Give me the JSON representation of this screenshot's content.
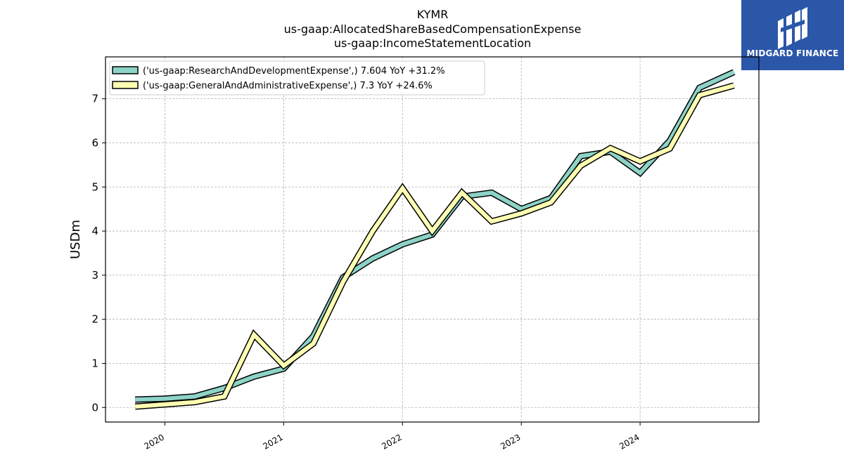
{
  "header": {
    "title_line1": "KYMR",
    "title_line2": "us-gaap:AllocatedShareBasedCompensationExpense",
    "title_line3": "us-gaap:IncomeStatementLocation"
  },
  "logo": {
    "text": "MIDGARD FINANCE",
    "color": "#2b57a8"
  },
  "chart_data": {
    "type": "line",
    "title": "KYMR\nus-gaap:AllocatedShareBasedCompensationExpense\nus-gaap:IncomeStatementLocation",
    "ylabel": "USDm",
    "xlabel": "",
    "xlim": [
      2019.5,
      2025.0
    ],
    "ylim": [
      -0.33,
      7.95
    ],
    "x_ticks": [
      {
        "value": 2020,
        "label": "2020"
      },
      {
        "value": 2021,
        "label": "2021"
      },
      {
        "value": 2022,
        "label": "2022"
      },
      {
        "value": 2023,
        "label": "2023"
      },
      {
        "value": 2024,
        "label": "2024"
      }
    ],
    "y_ticks": [
      0,
      1,
      2,
      3,
      4,
      5,
      6,
      7
    ],
    "grid": true,
    "legend_position": "top-left",
    "series": [
      {
        "name": "('us-gaap:ResearchAndDevelopmentExpense',) 7.604 YoY +31.2%",
        "color": "#8dd3c7",
        "points": [
          [
            2019.75,
            0.18
          ],
          [
            2020.0,
            0.2
          ],
          [
            2020.25,
            0.25
          ],
          [
            2020.5,
            0.44
          ],
          [
            2020.75,
            0.7
          ],
          [
            2021.0,
            0.88
          ],
          [
            2021.25,
            1.62
          ],
          [
            2021.5,
            2.95
          ],
          [
            2021.75,
            3.38
          ],
          [
            2022.0,
            3.7
          ],
          [
            2022.25,
            3.92
          ],
          [
            2022.5,
            4.78
          ],
          [
            2022.75,
            4.87
          ],
          [
            2023.0,
            4.5
          ],
          [
            2023.25,
            4.75
          ],
          [
            2023.5,
            5.7
          ],
          [
            2023.75,
            5.8
          ],
          [
            2024.0,
            5.32
          ],
          [
            2024.25,
            6.05
          ],
          [
            2024.5,
            7.25
          ],
          [
            2024.79,
            7.604
          ]
        ]
      },
      {
        "name": "('us-gaap:GeneralAndAdministrativeExpense',) 7.3 YoY +24.6%",
        "color": "#ffffb3",
        "points": [
          [
            2019.75,
            0.02
          ],
          [
            2020.0,
            0.07
          ],
          [
            2020.25,
            0.12
          ],
          [
            2020.5,
            0.25
          ],
          [
            2020.75,
            1.65
          ],
          [
            2021.0,
            0.95
          ],
          [
            2021.25,
            1.45
          ],
          [
            2021.5,
            2.85
          ],
          [
            2021.75,
            4.0
          ],
          [
            2022.0,
            4.97
          ],
          [
            2022.25,
            4.0
          ],
          [
            2022.5,
            4.87
          ],
          [
            2022.75,
            4.22
          ],
          [
            2023.0,
            4.4
          ],
          [
            2023.25,
            4.65
          ],
          [
            2023.5,
            5.48
          ],
          [
            2023.75,
            5.88
          ],
          [
            2024.0,
            5.58
          ],
          [
            2024.25,
            5.87
          ],
          [
            2024.5,
            7.08
          ],
          [
            2024.79,
            7.3
          ]
        ]
      }
    ]
  }
}
